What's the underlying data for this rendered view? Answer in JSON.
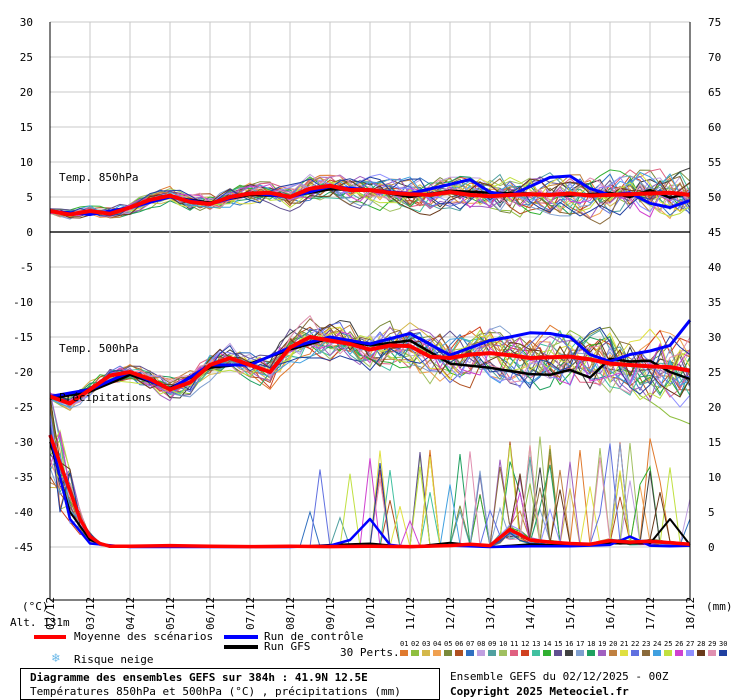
{
  "chart_data": {
    "type": "line",
    "title": "Diagramme des ensembles GEFS sur 384h : 41.9N 12.5E",
    "subtitle": "Températures 850hPa et 500hPa (°C) , précipitations (mm)",
    "x_tick_labels": [
      "03/12",
      "04/12",
      "05/12",
      "06/12",
      "07/12",
      "08/12",
      "09/12",
      "10/12",
      "11/12",
      "12/12",
      "13/12",
      "14/12",
      "15/12",
      "16/12",
      "17/12",
      "18/12"
    ],
    "x_first_label": "02/12",
    "x_range_hours": [
      0,
      384
    ],
    "y_left_label": "(°C)",
    "y_left_ticks": [
      30,
      25,
      20,
      15,
      10,
      5,
      0,
      -5,
      -10,
      -15,
      -20,
      -25,
      -30,
      -35,
      -40,
      -45
    ],
    "y_left_range": [
      -45,
      30
    ],
    "y_right_label": "(mm)",
    "y_right_ticks": [
      75,
      70,
      65,
      60,
      55,
      50,
      45,
      40,
      35,
      30,
      25,
      20,
      15,
      10,
      5,
      0
    ],
    "y_right_range": [
      0,
      75
    ],
    "panel_labels": {
      "t850": "Temp. 850hPa",
      "t500": "Temp. 500hPa",
      "precip": "Précipitations"
    },
    "altitude": "Alt. 131m",
    "grid": true,
    "mean_t850": [
      [
        0,
        3
      ],
      [
        12,
        2.5
      ],
      [
        24,
        3
      ],
      [
        36,
        2.6
      ],
      [
        48,
        3.5
      ],
      [
        60,
        4.6
      ],
      [
        72,
        5.2
      ],
      [
        84,
        4.3
      ],
      [
        96,
        4
      ],
      [
        108,
        5
      ],
      [
        120,
        5.5
      ],
      [
        132,
        5.6
      ],
      [
        144,
        5
      ],
      [
        156,
        6.2
      ],
      [
        168,
        6.6
      ],
      [
        180,
        6
      ],
      [
        192,
        6
      ],
      [
        204,
        5.6
      ],
      [
        216,
        5.4
      ],
      [
        228,
        5.3
      ],
      [
        240,
        5.7
      ],
      [
        252,
        5.3
      ],
      [
        264,
        5.1
      ],
      [
        276,
        5.3
      ],
      [
        288,
        5.4
      ],
      [
        300,
        5.3
      ],
      [
        312,
        5.5
      ],
      [
        324,
        5.2
      ],
      [
        336,
        5.3
      ],
      [
        348,
        5.4
      ],
      [
        360,
        5.5
      ],
      [
        372,
        5.6
      ],
      [
        384,
        5.3
      ]
    ],
    "mean_t500": [
      [
        0,
        -23.5
      ],
      [
        12,
        -24.5
      ],
      [
        24,
        -22.5
      ],
      [
        36,
        -20.5
      ],
      [
        48,
        -20
      ],
      [
        60,
        -21
      ],
      [
        72,
        -22.5
      ],
      [
        84,
        -21.5
      ],
      [
        96,
        -19
      ],
      [
        108,
        -18
      ],
      [
        120,
        -19
      ],
      [
        132,
        -20
      ],
      [
        144,
        -16.5
      ],
      [
        156,
        -15
      ],
      [
        168,
        -15.5
      ],
      [
        180,
        -16
      ],
      [
        192,
        -16.8
      ],
      [
        204,
        -16.2
      ],
      [
        216,
        -16.3
      ],
      [
        228,
        -17.8
      ],
      [
        240,
        -18
      ],
      [
        252,
        -17.5
      ],
      [
        264,
        -17.3
      ],
      [
        276,
        -17.6
      ],
      [
        288,
        -18
      ],
      [
        300,
        -17.9
      ],
      [
        312,
        -17.8
      ],
      [
        324,
        -18.2
      ],
      [
        336,
        -18.8
      ],
      [
        348,
        -19
      ],
      [
        360,
        -19.2
      ],
      [
        372,
        -19.3
      ],
      [
        384,
        -19.8
      ]
    ],
    "mean_precip": [
      [
        0,
        16
      ],
      [
        6,
        12
      ],
      [
        12,
        8
      ],
      [
        18,
        4
      ],
      [
        24,
        1.5
      ],
      [
        30,
        0.5
      ],
      [
        36,
        0.1
      ],
      [
        48,
        0.1
      ],
      [
        72,
        0.2
      ],
      [
        96,
        0.1
      ],
      [
        120,
        0.05
      ],
      [
        144,
        0.1
      ],
      [
        168,
        0.05
      ],
      [
        192,
        0.1
      ],
      [
        216,
        0.05
      ],
      [
        240,
        0.2
      ],
      [
        252,
        0.4
      ],
      [
        264,
        0.2
      ],
      [
        276,
        2.5
      ],
      [
        288,
        1
      ],
      [
        300,
        0.7
      ],
      [
        312,
        0.5
      ],
      [
        324,
        0.4
      ],
      [
        336,
        0.9
      ],
      [
        348,
        0.7
      ],
      [
        360,
        0.8
      ],
      [
        372,
        0.6
      ],
      [
        384,
        0.4
      ]
    ],
    "control_t850": [
      [
        0,
        3
      ],
      [
        24,
        2.5
      ],
      [
        48,
        3.5
      ],
      [
        72,
        5
      ],
      [
        96,
        4
      ],
      [
        120,
        5.6
      ],
      [
        144,
        5
      ],
      [
        168,
        6.5
      ],
      [
        192,
        6
      ],
      [
        216,
        5.5
      ],
      [
        240,
        6.8
      ],
      [
        252,
        7.5
      ],
      [
        264,
        5.7
      ],
      [
        276,
        5.2
      ],
      [
        288,
        6.5
      ],
      [
        300,
        7.8
      ],
      [
        312,
        8
      ],
      [
        324,
        6.2
      ],
      [
        336,
        5.3
      ],
      [
        348,
        5.6
      ],
      [
        360,
        4.1
      ],
      [
        372,
        3.5
      ],
      [
        384,
        4.5
      ]
    ],
    "control_t500": [
      [
        0,
        -23.5
      ],
      [
        24,
        -22.5
      ],
      [
        48,
        -20
      ],
      [
        72,
        -22.5
      ],
      [
        96,
        -19
      ],
      [
        120,
        -19
      ],
      [
        144,
        -16.5
      ],
      [
        168,
        -15
      ],
      [
        192,
        -16
      ],
      [
        216,
        -14.5
      ],
      [
        240,
        -17.6
      ],
      [
        264,
        -15.5
      ],
      [
        276,
        -15
      ],
      [
        288,
        -14.4
      ],
      [
        300,
        -14.5
      ],
      [
        312,
        -15
      ],
      [
        324,
        -17.5
      ],
      [
        336,
        -18.5
      ],
      [
        348,
        -17.5
      ],
      [
        360,
        -17
      ],
      [
        372,
        -16.2
      ],
      [
        384,
        -12.6
      ]
    ],
    "control_precip": [
      [
        0,
        16
      ],
      [
        12,
        4
      ],
      [
        24,
        0.5
      ],
      [
        48,
        0
      ],
      [
        96,
        0
      ],
      [
        144,
        0
      ],
      [
        168,
        0.2
      ],
      [
        180,
        1
      ],
      [
        192,
        4
      ],
      [
        204,
        0.3
      ],
      [
        216,
        0
      ],
      [
        240,
        0.2
      ],
      [
        264,
        0
      ],
      [
        288,
        0.1
      ],
      [
        312,
        0.1
      ],
      [
        336,
        0.3
      ],
      [
        348,
        1.5
      ],
      [
        360,
        0.2
      ],
      [
        372,
        0.1
      ],
      [
        384,
        0.2
      ]
    ],
    "gfs_t850": [
      [
        0,
        3
      ],
      [
        24,
        2.5
      ],
      [
        48,
        3.5
      ],
      [
        72,
        5
      ],
      [
        96,
        4.2
      ],
      [
        120,
        5.3
      ],
      [
        144,
        5.1
      ],
      [
        168,
        6.1
      ],
      [
        192,
        6
      ],
      [
        216,
        5
      ],
      [
        240,
        5.9
      ],
      [
        264,
        5.6
      ],
      [
        288,
        5.5
      ],
      [
        312,
        5.2
      ],
      [
        336,
        5.6
      ],
      [
        348,
        5
      ],
      [
        360,
        6
      ],
      [
        372,
        4.9
      ],
      [
        384,
        5.5
      ]
    ],
    "gfs_t500": [
      [
        0,
        -23.8
      ],
      [
        24,
        -22.8
      ],
      [
        48,
        -20.4
      ],
      [
        72,
        -22.3
      ],
      [
        96,
        -19.4
      ],
      [
        120,
        -18.8
      ],
      [
        144,
        -16.8
      ],
      [
        168,
        -15.2
      ],
      [
        192,
        -16.2
      ],
      [
        216,
        -15.5
      ],
      [
        240,
        -18.8
      ],
      [
        264,
        -19.4
      ],
      [
        288,
        -20.3
      ],
      [
        300,
        -20.4
      ],
      [
        312,
        -19.7
      ],
      [
        324,
        -20.8
      ],
      [
        336,
        -18.1
      ],
      [
        348,
        -18.5
      ],
      [
        360,
        -18.4
      ],
      [
        372,
        -20
      ],
      [
        384,
        -21
      ]
    ],
    "gfs_precip": [
      [
        0,
        15
      ],
      [
        12,
        5
      ],
      [
        24,
        1
      ],
      [
        36,
        0
      ],
      [
        96,
        0
      ],
      [
        144,
        0
      ],
      [
        168,
        0.3
      ],
      [
        192,
        0.5
      ],
      [
        216,
        0
      ],
      [
        240,
        0.6
      ],
      [
        264,
        0
      ],
      [
        288,
        0.4
      ],
      [
        312,
        0.2
      ],
      [
        336,
        0.5
      ],
      [
        348,
        0.5
      ],
      [
        360,
        0.5
      ],
      [
        372,
        4
      ],
      [
        384,
        0.3
      ]
    ],
    "legend": [
      {
        "label": "Moyenne des scénarios",
        "color": "#ff0000"
      },
      {
        "label": "Run de contrôle",
        "color": "#0000ff"
      },
      {
        "label": "Run GFS",
        "color": "#000000"
      },
      {
        "label": "Risque neige",
        "color": "#6ab8e8",
        "icon": "snowflake-icon"
      }
    ],
    "perturbations_label": "30 Perts.",
    "perturbations": [
      "01",
      "02",
      "03",
      "04",
      "05",
      "06",
      "07",
      "08",
      "09",
      "10",
      "11",
      "12",
      "13",
      "14",
      "15",
      "16",
      "17",
      "18",
      "19",
      "20",
      "21",
      "22",
      "23",
      "24",
      "25",
      "26",
      "27",
      "28",
      "29",
      "30"
    ],
    "perturbation_colors": [
      "#e07a2e",
      "#8fbf3f",
      "#d4b84a",
      "#f0a050",
      "#7a8a3a",
      "#b05020",
      "#3070c0",
      "#c0a0e0",
      "#50a0a0",
      "#a0c060",
      "#e06080",
      "#d04020",
      "#40c0a0",
      "#30b030",
      "#605090",
      "#404040",
      "#80a0d0",
      "#20a060",
      "#a060c0",
      "#c08040",
      "#e0e040",
      "#6070e0",
      "#8a6a3a",
      "#40a0e0",
      "#c0e040",
      "#d040d0",
      "#9090ff",
      "#6a3a1a",
      "#e090b0",
      "#2040a0"
    ],
    "run_info": "Ensemble GEFS du 02/12/2025 - 00Z",
    "copyright": "Copyright 2025 Meteociel.fr"
  }
}
